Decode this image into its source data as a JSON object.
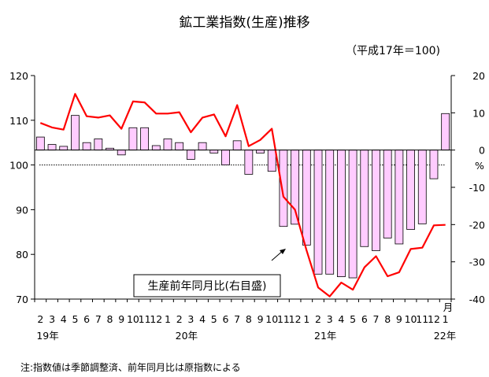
{
  "title": "鉱工業指数(生産)推移",
  "base_note": "（平成17年＝100)",
  "footnote": "注:指数値は季節調整済、前年同月比は原指数による",
  "chart_data": {
    "type": "bar+line",
    "categories": [
      "2",
      "3",
      "4",
      "5",
      "6",
      "7",
      "8",
      "9",
      "10",
      "11",
      "12",
      "1",
      "2",
      "3",
      "4",
      "5",
      "6",
      "7",
      "8",
      "9",
      "10",
      "11",
      "12",
      "1",
      "2",
      "3",
      "4",
      "5",
      "6",
      "7",
      "8",
      "9",
      "10",
      "11",
      "12",
      "1"
    ],
    "year_labels": [
      {
        "index": 0,
        "label": "19年"
      },
      {
        "index": 12,
        "label": "20年"
      },
      {
        "index": 24,
        "label": "21年"
      },
      {
        "index": 35,
        "label": "22年"
      }
    ],
    "month_unit": "月",
    "left_axis": {
      "ylim": [
        70,
        120
      ],
      "ticks": [
        70,
        80,
        90,
        100,
        110,
        120
      ]
    },
    "right_axis": {
      "unit": "%",
      "ylim": [
        -40,
        20
      ],
      "ticks": [
        -40,
        -30,
        -20,
        -10,
        0,
        10,
        20
      ]
    },
    "reference_line": 100,
    "series": [
      {
        "type": "line",
        "axis": "left",
        "color": "#ff0000",
        "values": [
          109.4,
          108.4,
          107.9,
          115.9,
          110.9,
          110.6,
          111.1,
          108.1,
          114.2,
          114.0,
          111.5,
          111.5,
          111.8,
          107.3,
          110.6,
          111.3,
          106.4,
          113.4,
          104.2,
          105.6,
          108.1,
          92.9,
          90.0,
          80.9,
          72.6,
          70.6,
          73.7,
          72.1,
          77.1,
          79.6,
          75.1,
          76.0,
          81.2,
          81.5,
          86.5,
          86.6
        ]
      },
      {
        "type": "bar",
        "axis": "right",
        "name": "生産前年同月比(右目盛)",
        "fill": "#ffccff",
        "stroke": "#000000",
        "values": [
          3.5,
          1.5,
          1.0,
          9.3,
          2.0,
          3.0,
          0.5,
          -1.3,
          6.0,
          6.0,
          1.2,
          3.0,
          2.0,
          -2.5,
          2.0,
          -0.8,
          -4.0,
          2.5,
          -6.5,
          -0.8,
          -5.7,
          -20.5,
          -19.9,
          -25.5,
          -33.3,
          -33.3,
          -34.0,
          -34.3,
          -25.9,
          -27.0,
          -23.6,
          -25.2,
          -21.3,
          -19.8,
          -7.7,
          9.8
        ]
      }
    ]
  }
}
